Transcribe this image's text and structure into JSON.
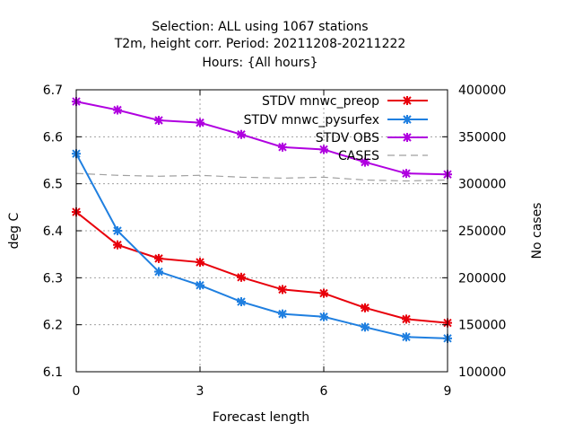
{
  "chart_data": {
    "type": "line",
    "title_lines": [
      "Selection: ALL using  1067 stations",
      "T2m, height corr.   Period: 20211208-20211222",
      "Hours: {All hours}"
    ],
    "xlabel": "Forecast length",
    "ylabel": "deg C",
    "y2label": "No cases",
    "xlim": [
      0,
      9
    ],
    "ylim": [
      6.1,
      6.7
    ],
    "y2lim": [
      100000,
      400000
    ],
    "x_ticks": [
      0,
      3,
      6,
      9
    ],
    "x_tick_labels": [
      "0",
      "3",
      "6",
      "9"
    ],
    "y_ticks": [
      6.1,
      6.2,
      6.3,
      6.4,
      6.5,
      6.6,
      6.7
    ],
    "y_tick_labels": [
      "6.1",
      "6.2",
      "6.3",
      "6.4",
      "6.5",
      "6.6",
      "6.7"
    ],
    "y2_ticks": [
      100000,
      150000,
      200000,
      250000,
      300000,
      350000,
      400000
    ],
    "y2_tick_labels": [
      "100000",
      "150000",
      "200000",
      "250000",
      "300000",
      "350000",
      "400000"
    ],
    "grid": true,
    "legend_position": "top-right",
    "x": [
      0,
      1,
      2,
      3,
      4,
      5,
      6,
      7,
      8,
      9
    ],
    "series": [
      {
        "name": "STDV mnwc_preop",
        "color": "#e8000b",
        "axis": "y",
        "marker": "x-star",
        "values": [
          6.44,
          6.37,
          6.341,
          6.333,
          6.301,
          6.275,
          6.267,
          6.236,
          6.212,
          6.204
        ]
      },
      {
        "name": "STDV mnwc_pysurfex",
        "color": "#1f7fe0",
        "axis": "y",
        "marker": "x-star",
        "values": [
          6.564,
          6.4,
          6.313,
          6.284,
          6.249,
          6.223,
          6.217,
          6.195,
          6.174,
          6.171
        ]
      },
      {
        "name": "STDV OBS",
        "color": "#b000e0",
        "axis": "y",
        "marker": "x-star",
        "values": [
          6.675,
          6.657,
          6.635,
          6.63,
          6.605,
          6.578,
          6.573,
          6.546,
          6.522,
          6.52
        ]
      },
      {
        "name": "CASES",
        "color": "#a0a0a0",
        "axis": "y2",
        "dashed": true,
        "marker": "none",
        "values": [
          311000,
          309000,
          308000,
          309000,
          307000,
          306000,
          307000,
          304000,
          303000,
          304000
        ]
      }
    ]
  }
}
